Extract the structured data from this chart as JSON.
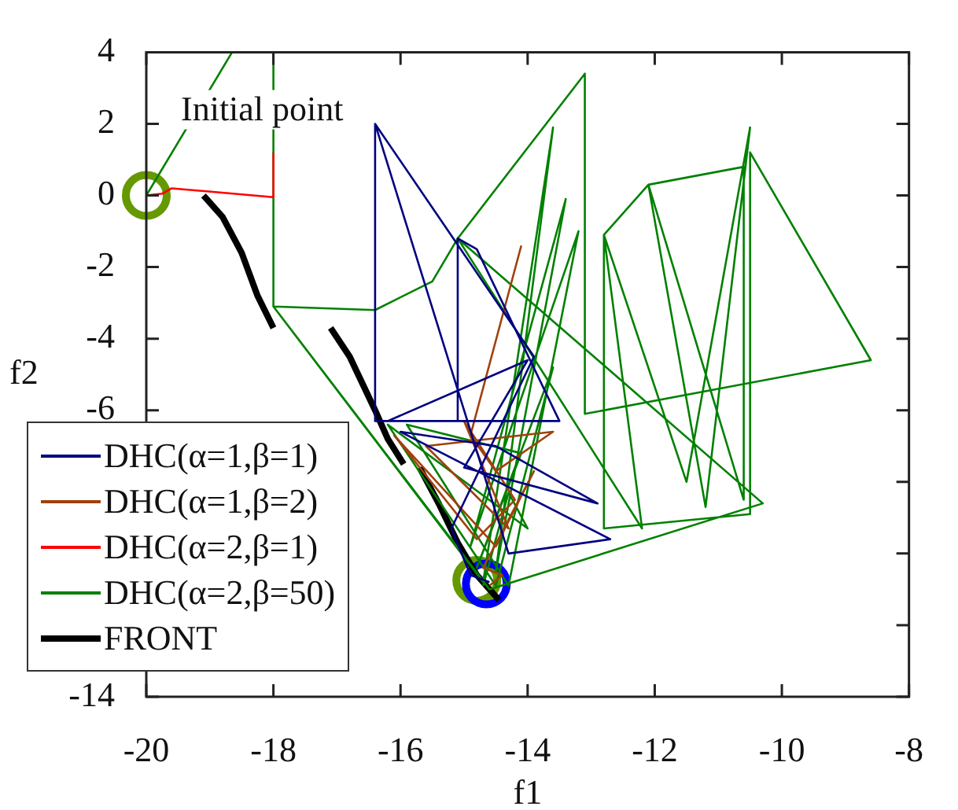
{
  "chart_data": {
    "type": "line",
    "xlabel": "f1",
    "ylabel": "f2",
    "xlim": [
      -20,
      -8
    ],
    "ylim": [
      -14,
      4
    ],
    "xticks": [
      -20,
      -18,
      -16,
      -14,
      -12,
      -10,
      -8
    ],
    "yticks": [
      -14,
      {
        "value": -12,
        "label": null
      },
      {
        "value": -10,
        "label": null
      },
      {
        "value": -8,
        "label": null
      },
      -6,
      -4,
      -2,
      0,
      2,
      4
    ],
    "grid": false,
    "legend": "bottom left",
    "line_style": "solid",
    "annotations": [
      {
        "text": "Initial point",
        "x": -20,
        "y": 0
      }
    ],
    "series": [
      {
        "name": "DHC(α=1,β=1)",
        "color": "#000080",
        "marker": "none",
        "x": [
          -16.4,
          -16.4,
          -13.5,
          -14.8,
          -15.1,
          -15.1,
          -16.2,
          -14.0,
          -15.0,
          -12.9,
          -14.5,
          -16.0,
          -12.7,
          -14.3,
          -16.4,
          -13.9,
          -15.2,
          -14.9,
          -14.6
        ],
        "values": [
          2.0,
          -6.3,
          -6.3,
          -1.5,
          -1.2,
          -6.3,
          -6.3,
          -4.6,
          -7.6,
          -8.6,
          -7.0,
          -6.6,
          -9.6,
          -10.0,
          2.0,
          -4.5,
          -9.3,
          -10.6,
          -10.8
        ]
      },
      {
        "name": "DHC(α=1,β=2)",
        "color": "#a0410d",
        "marker": "none",
        "x": [
          -14.1,
          -14.9,
          -14.5,
          -13.6,
          -15.6,
          -14.3,
          -15.0,
          -14.2,
          -14.8,
          -16.1,
          -14.5,
          -13.9,
          -14.7,
          -14.4,
          -14.6
        ],
        "values": [
          -1.4,
          -6.7,
          -7.7,
          -6.6,
          -7.0,
          -9.3,
          -6.3,
          -8.5,
          -9.6,
          -6.7,
          -9.8,
          -7.7,
          -10.4,
          -10.6,
          -10.9
        ]
      },
      {
        "name": "DHC(α=2,β=1)",
        "color": "#ff0000",
        "marker": "none",
        "x": [
          -20,
          -19.75,
          -19.6,
          -18.0,
          -18.0
        ],
        "values": [
          0,
          0.05,
          0.2,
          -0.05,
          1.2
        ]
      },
      {
        "name": "DHC(α=2,β=50)",
        "color": "#008000",
        "marker": "none",
        "x": [
          -20,
          -18.65,
          -18.3,
          -18,
          -18,
          -16.4,
          -15.5,
          -15.1,
          -13.1,
          -13.1,
          -8.6,
          -10.5,
          -10.5,
          -12.8,
          -12.8,
          -12.1,
          -10.6,
          -10.6,
          -12.1,
          -11.2,
          -10.5,
          -11.5,
          -12.8,
          -12.2,
          -15.1,
          -10.3,
          -14.6,
          -18,
          -14.7,
          -13.6,
          -14.5,
          -13.4,
          -14.9,
          -13.2,
          -14.3,
          -15.9,
          -14.1,
          -14.8,
          -13.6,
          -14.5,
          -16.2,
          -14.0,
          -14.3,
          -14.7
        ],
        "values": [
          0,
          4,
          null,
          4,
          -3.1,
          -3.2,
          -2.4,
          -1.2,
          3.4,
          -6.1,
          -4.6,
          1.2,
          -8.9,
          -9.3,
          -1.1,
          0.3,
          0.8,
          -8.5,
          0.3,
          -8.7,
          1.9,
          -8.0,
          -1.1,
          -9.3,
          -1.2,
          -8.6,
          -11.0,
          -3.1,
          -10.8,
          1.9,
          -10.5,
          -0.1,
          -9.8,
          -1.0,
          -10.9,
          -6.4,
          -7.2,
          -10.4,
          -4.8,
          -10.9,
          -6.4,
          -9.3,
          -8.3,
          -10.9
        ]
      },
      {
        "name": "FRONT",
        "color": "#000000",
        "marker": "none",
        "x": [
          -19.1,
          -18.8,
          -18.5,
          -18.25,
          -18.0,
          -17.5,
          -17.1,
          -16.8,
          -16.4,
          -16.2,
          -15.95,
          -15.8,
          -15.7,
          -15.4,
          -15.1,
          -14.8,
          -14.45
        ],
        "values": [
          0.0,
          -0.6,
          -1.6,
          -2.8,
          -3.7,
          null,
          -3.7,
          -4.5,
          -6.0,
          -6.8,
          -7.5,
          null,
          -7.6,
          -8.6,
          -9.7,
          -10.6,
          -11.3
        ]
      },
      {
        "type": "scatter",
        "color": "#0000ff",
        "marker": "circle",
        "x": [
          -14.65
        ],
        "values": [
          -10.85
        ]
      },
      {
        "type": "scatter",
        "color": "#669900",
        "marker": "circle",
        "x": [
          -20,
          -14.8
        ],
        "values": [
          0,
          -10.75
        ]
      }
    ]
  }
}
